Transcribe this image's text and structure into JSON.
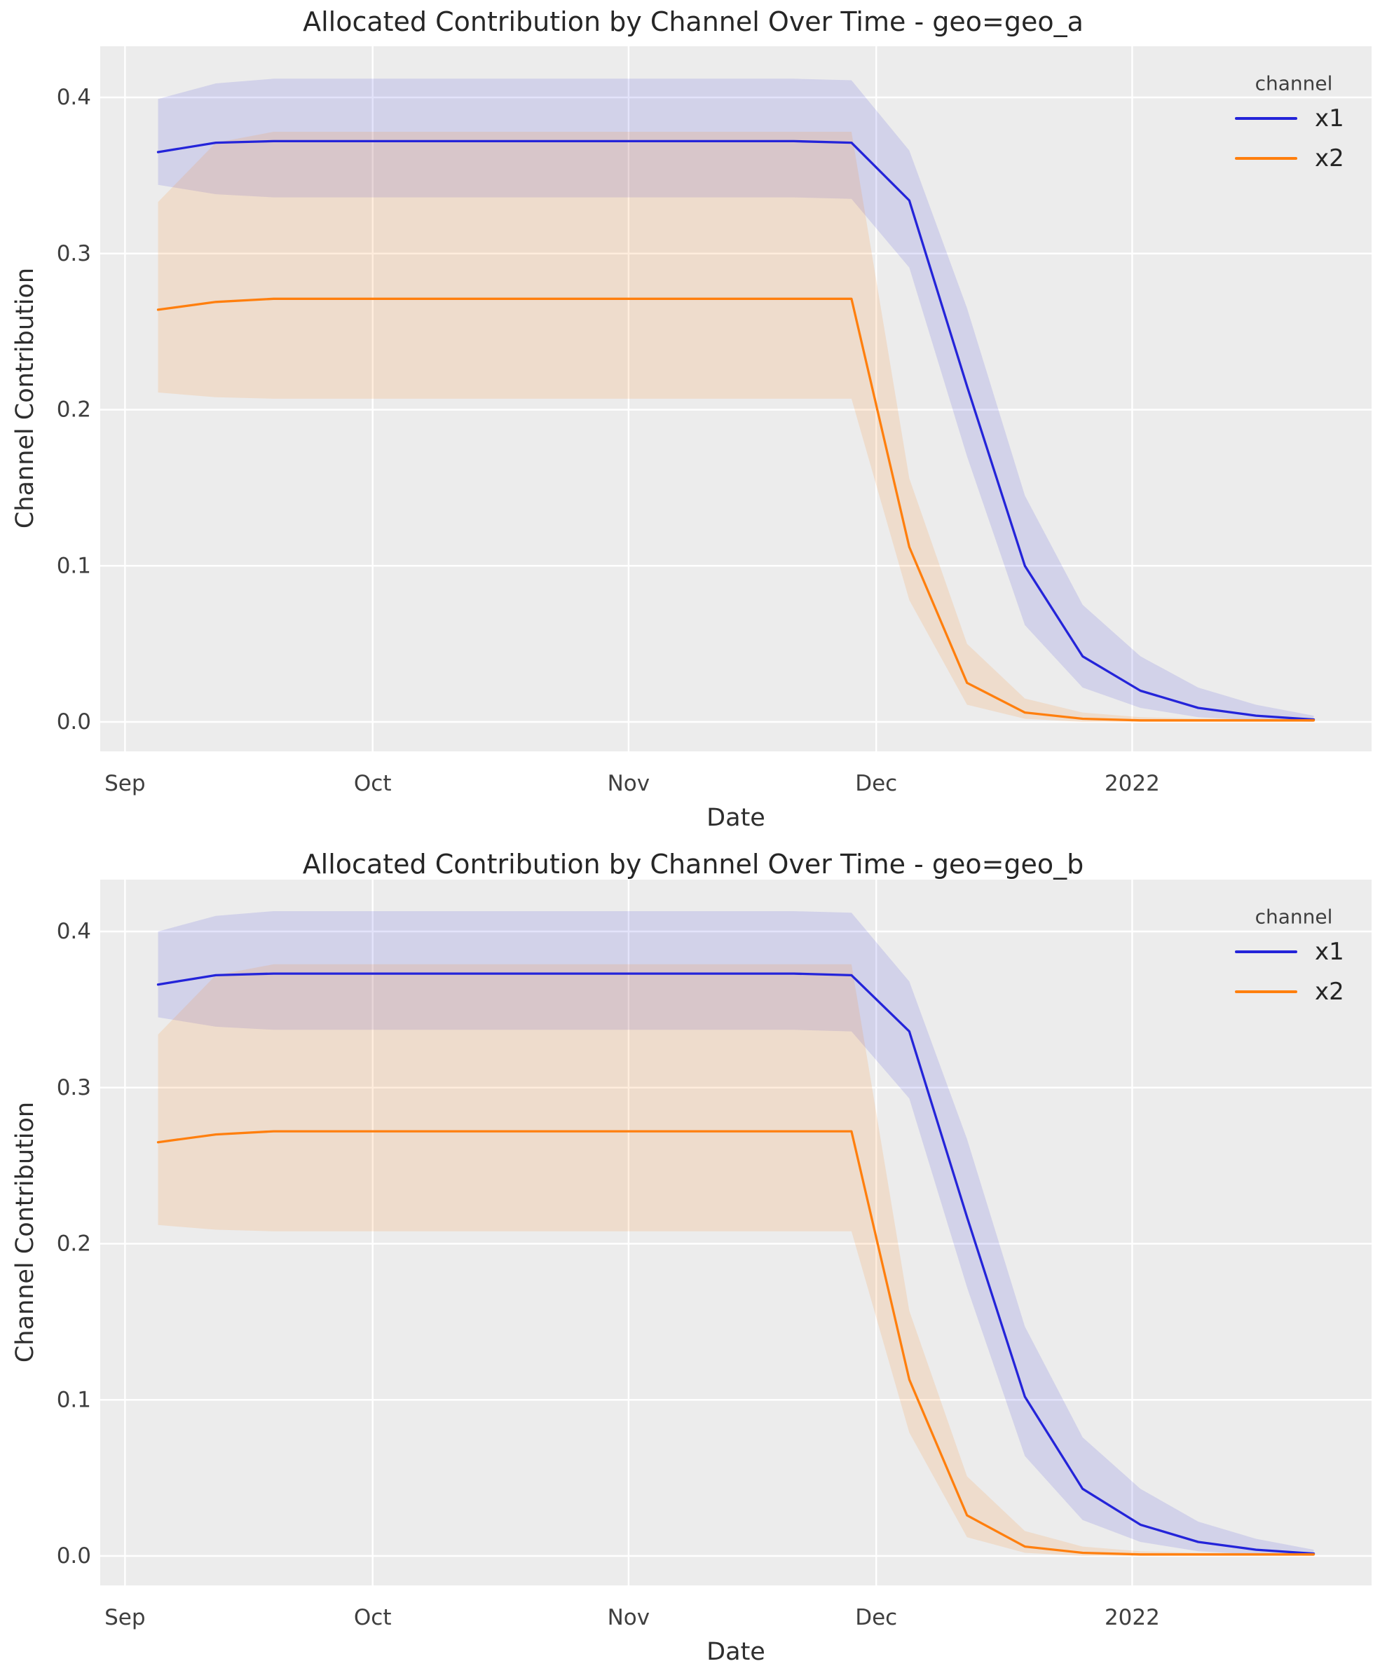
{
  "figure": {
    "background": "#ffffff",
    "description": "Two stacked seaborn lineplots of allocated media channel contribution over time with confidence bands"
  },
  "style": {
    "axes_bg": "#ececec",
    "grid_color": "#ffffff",
    "title_color": "#262626",
    "label_color": "#2e2e2e",
    "tick_color": "#3f3f3f",
    "blue": "#2424d9",
    "orange": "#ff7f0e",
    "blue_band": "rgba(36,36,217,0.13)",
    "orange_band": "rgba(255,127,14,0.14)"
  },
  "chart_data": [
    {
      "type": "line",
      "title": "Allocated Contribution by Channel Over Time - geo=geo_a",
      "xlabel": "Date",
      "ylabel": "Channel Contribution",
      "legend": {
        "title": "channel",
        "position": "upper right",
        "entries": [
          {
            "label": "x1",
            "color_key": "blue"
          },
          {
            "label": "x2",
            "color_key": "orange"
          }
        ]
      },
      "grid": true,
      "x_ticks": [
        {
          "label": "Sep",
          "day": 0
        },
        {
          "label": "Oct",
          "day": 30
        },
        {
          "label": "Nov",
          "day": 61
        },
        {
          "label": "Dec",
          "day": 91
        },
        {
          "label": "2022",
          "day": 122
        }
      ],
      "y_ticks": [
        {
          "label": "0.0",
          "value": 0.0
        },
        {
          "label": "0.1",
          "value": 0.1
        },
        {
          "label": "0.2",
          "value": 0.2
        },
        {
          "label": "0.3",
          "value": 0.3
        },
        {
          "label": "0.4",
          "value": 0.4
        }
      ],
      "x_domain_days": [
        -3,
        151
      ],
      "ylim": [
        -0.019,
        0.434
      ],
      "dates": [
        "2021-09-05",
        "2021-09-12",
        "2021-09-19",
        "2021-09-26",
        "2021-10-03",
        "2021-10-10",
        "2021-10-17",
        "2021-10-24",
        "2021-10-31",
        "2021-11-07",
        "2021-11-14",
        "2021-11-21",
        "2021-11-28",
        "2021-12-05",
        "2021-12-12",
        "2021-12-19",
        "2021-12-26",
        "2022-01-02",
        "2022-01-09",
        "2022-01-16",
        "2022-01-23"
      ],
      "days": [
        4,
        11,
        18,
        25,
        32,
        39,
        46,
        53,
        60,
        67,
        74,
        81,
        88,
        95,
        102,
        109,
        116,
        123,
        130,
        137,
        144
      ],
      "series": [
        {
          "name": "x1",
          "color_key": "blue",
          "mean": [
            0.365,
            0.371,
            0.372,
            0.372,
            0.372,
            0.372,
            0.372,
            0.372,
            0.372,
            0.372,
            0.372,
            0.372,
            0.371,
            0.334,
            0.215,
            0.1,
            0.042,
            0.02,
            0.009,
            0.004,
            0.0015
          ],
          "lower": [
            0.344,
            0.338,
            0.336,
            0.336,
            0.336,
            0.336,
            0.336,
            0.336,
            0.336,
            0.336,
            0.336,
            0.336,
            0.335,
            0.291,
            0.17,
            0.062,
            0.022,
            0.009,
            0.003,
            0.001,
            0.0
          ],
          "upper": [
            0.399,
            0.409,
            0.412,
            0.412,
            0.412,
            0.412,
            0.412,
            0.412,
            0.412,
            0.412,
            0.412,
            0.412,
            0.411,
            0.366,
            0.265,
            0.145,
            0.075,
            0.042,
            0.022,
            0.011,
            0.004
          ]
        },
        {
          "name": "x2",
          "color_key": "orange",
          "mean": [
            0.264,
            0.269,
            0.271,
            0.271,
            0.271,
            0.271,
            0.271,
            0.271,
            0.271,
            0.271,
            0.271,
            0.271,
            0.271,
            0.112,
            0.025,
            0.006,
            0.002,
            0.001,
            0.001,
            0.001,
            0.001
          ],
          "lower": [
            0.211,
            0.208,
            0.207,
            0.207,
            0.207,
            0.207,
            0.207,
            0.207,
            0.207,
            0.207,
            0.207,
            0.207,
            0.207,
            0.078,
            0.011,
            0.002,
            0.0,
            0.0,
            0.0,
            0.0,
            0.0
          ],
          "upper": [
            0.333,
            0.371,
            0.378,
            0.378,
            0.378,
            0.378,
            0.378,
            0.378,
            0.378,
            0.378,
            0.378,
            0.378,
            0.378,
            0.156,
            0.05,
            0.015,
            0.006,
            0.003,
            0.002,
            0.002,
            0.002
          ]
        }
      ]
    },
    {
      "type": "line",
      "title": "Allocated Contribution by Channel Over Time - geo=geo_b",
      "xlabel": "Date",
      "ylabel": "Channel Contribution",
      "legend": {
        "title": "channel",
        "position": "upper right",
        "entries": [
          {
            "label": "x1",
            "color_key": "blue"
          },
          {
            "label": "x2",
            "color_key": "orange"
          }
        ]
      },
      "grid": true,
      "x_ticks": [
        {
          "label": "Sep",
          "day": 0
        },
        {
          "label": "Oct",
          "day": 30
        },
        {
          "label": "Nov",
          "day": 61
        },
        {
          "label": "Dec",
          "day": 91
        },
        {
          "label": "2022",
          "day": 122
        }
      ],
      "y_ticks": [
        {
          "label": "0.0",
          "value": 0.0
        },
        {
          "label": "0.1",
          "value": 0.1
        },
        {
          "label": "0.2",
          "value": 0.2
        },
        {
          "label": "0.3",
          "value": 0.3
        },
        {
          "label": "0.4",
          "value": 0.4
        }
      ],
      "x_domain_days": [
        -3,
        151
      ],
      "ylim": [
        -0.019,
        0.434
      ],
      "dates": [
        "2021-09-05",
        "2021-09-12",
        "2021-09-19",
        "2021-09-26",
        "2021-10-03",
        "2021-10-10",
        "2021-10-17",
        "2021-10-24",
        "2021-10-31",
        "2021-11-07",
        "2021-11-14",
        "2021-11-21",
        "2021-11-28",
        "2021-12-05",
        "2021-12-12",
        "2021-12-19",
        "2021-12-26",
        "2022-01-02",
        "2022-01-09",
        "2022-01-16",
        "2022-01-23"
      ],
      "days": [
        4,
        11,
        18,
        25,
        32,
        39,
        46,
        53,
        60,
        67,
        74,
        81,
        88,
        95,
        102,
        109,
        116,
        123,
        130,
        137,
        144
      ],
      "series": [
        {
          "name": "x1",
          "color_key": "blue",
          "mean": [
            0.366,
            0.372,
            0.373,
            0.373,
            0.373,
            0.373,
            0.373,
            0.373,
            0.373,
            0.373,
            0.373,
            0.373,
            0.372,
            0.336,
            0.217,
            0.102,
            0.043,
            0.02,
            0.009,
            0.004,
            0.0015
          ],
          "lower": [
            0.345,
            0.339,
            0.337,
            0.337,
            0.337,
            0.337,
            0.337,
            0.337,
            0.337,
            0.337,
            0.337,
            0.337,
            0.336,
            0.293,
            0.172,
            0.064,
            0.023,
            0.009,
            0.003,
            0.001,
            0.0
          ],
          "upper": [
            0.4,
            0.41,
            0.413,
            0.413,
            0.413,
            0.413,
            0.413,
            0.413,
            0.413,
            0.413,
            0.413,
            0.413,
            0.412,
            0.368,
            0.267,
            0.147,
            0.076,
            0.043,
            0.022,
            0.011,
            0.004
          ]
        },
        {
          "name": "x2",
          "color_key": "orange",
          "mean": [
            0.265,
            0.27,
            0.272,
            0.272,
            0.272,
            0.272,
            0.272,
            0.272,
            0.272,
            0.272,
            0.272,
            0.272,
            0.272,
            0.113,
            0.026,
            0.006,
            0.002,
            0.001,
            0.001,
            0.001,
            0.001
          ],
          "lower": [
            0.212,
            0.209,
            0.208,
            0.208,
            0.208,
            0.208,
            0.208,
            0.208,
            0.208,
            0.208,
            0.208,
            0.208,
            0.208,
            0.079,
            0.012,
            0.002,
            0.0,
            0.0,
            0.0,
            0.0,
            0.0
          ],
          "upper": [
            0.334,
            0.372,
            0.379,
            0.379,
            0.379,
            0.379,
            0.379,
            0.379,
            0.379,
            0.379,
            0.379,
            0.379,
            0.379,
            0.157,
            0.051,
            0.016,
            0.006,
            0.003,
            0.002,
            0.002,
            0.002
          ]
        }
      ]
    }
  ]
}
